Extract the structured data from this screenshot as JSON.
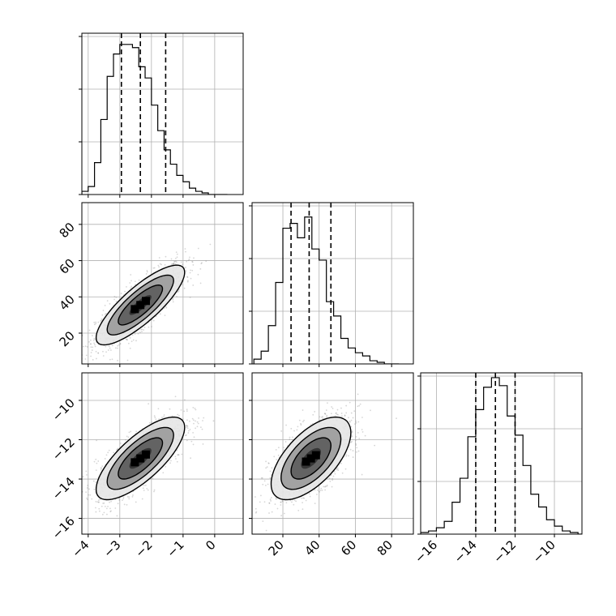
{
  "chart_data": {
    "type": "corner",
    "title": "",
    "parameters": [
      {
        "range": [
          -4.2,
          0.9
        ],
        "ticks": [
          -4,
          -3,
          -2,
          -1,
          0
        ],
        "tick_labels": [
          "−4",
          "−3",
          "−2",
          "−1",
          "0"
        ]
      },
      {
        "range": [
          3,
          92
        ],
        "ticks": [
          20,
          40,
          60,
          80
        ],
        "tick_labels": [
          "20",
          "40",
          "60",
          "80"
        ]
      },
      {
        "range": [
          -16.8,
          -8.6
        ],
        "ticks": [
          -16,
          -14,
          -12,
          -10
        ],
        "tick_labels": [
          "−16",
          "−14",
          "−12",
          "−10"
        ]
      }
    ],
    "grid": true,
    "histograms": [
      {
        "param": 0,
        "bin_edges": [
          -4.2,
          -4.0,
          -3.8,
          -3.6,
          -3.4,
          -3.2,
          -3.0,
          -2.8,
          -2.6,
          -2.4,
          -2.2,
          -2.0,
          -1.8,
          -1.6,
          -1.4,
          -1.2,
          -1.0,
          -0.8,
          -0.6,
          -0.4,
          -0.2,
          0.0,
          0.2,
          0.4
        ],
        "counts": [
          2,
          5,
          20,
          47,
          74,
          88,
          94,
          94,
          92,
          80,
          73,
          56,
          40,
          28,
          19,
          12,
          8,
          4,
          2,
          1,
          0,
          0,
          0
        ],
        "quantiles": [
          -2.95,
          -2.35,
          -1.55
        ],
        "y_ticks": [
          0,
          33,
          66,
          99
        ]
      },
      {
        "param": 1,
        "bin_edges": [
          4,
          8,
          12,
          16,
          20,
          24,
          28,
          32,
          36,
          40,
          44,
          48,
          52,
          56,
          60,
          64,
          68,
          72,
          76,
          80,
          84
        ],
        "counts": [
          3,
          8,
          24,
          51,
          85,
          88,
          79,
          92,
          72,
          65,
          39,
          30,
          16,
          10,
          7,
          5,
          2,
          1,
          0,
          0
        ],
        "quantiles": [
          24.5,
          34.5,
          46.5
        ],
        "y_ticks": [
          0,
          33,
          66,
          99
        ]
      },
      {
        "param": 2,
        "bin_edges": [
          -16.8,
          -16.4,
          -16.0,
          -15.6,
          -15.2,
          -14.8,
          -14.4,
          -14.0,
          -13.6,
          -13.2,
          -12.8,
          -12.4,
          -12.0,
          -11.6,
          -11.2,
          -10.8,
          -10.4,
          -10.0,
          -9.6,
          -9.2,
          -8.8,
          -8.6
        ],
        "counts": [
          1,
          2,
          4,
          8,
          20,
          35,
          61,
          78,
          92,
          98,
          93,
          74,
          62,
          43,
          25,
          17,
          9,
          5,
          2,
          1,
          0
        ],
        "quantiles": [
          -14.0,
          -13.0,
          -12.0
        ],
        "y_ticks": [
          0,
          33,
          66,
          99
        ]
      }
    ],
    "scatter_panels": [
      {
        "x_param": 0,
        "y_param": 1,
        "mean": [
          -2.35,
          35.5
        ],
        "sd": [
          0.7,
          11.0
        ],
        "corr": 0.82
      },
      {
        "x_param": 0,
        "y_param": 2,
        "mean": [
          -2.35,
          -12.95
        ],
        "sd": [
          0.7,
          1.05
        ],
        "corr": 0.75
      },
      {
        "x_param": 1,
        "y_param": 2,
        "mean": [
          35.5,
          -12.95
        ],
        "sd": [
          11.0,
          1.05
        ],
        "corr": 0.62
      }
    ],
    "contour_levels_sigma": [
      0.5,
      1.0,
      1.5,
      2.0
    ],
    "colors": {
      "line": "#000000",
      "grid": "#b0b0b0",
      "points": "#8a8a8a"
    }
  }
}
